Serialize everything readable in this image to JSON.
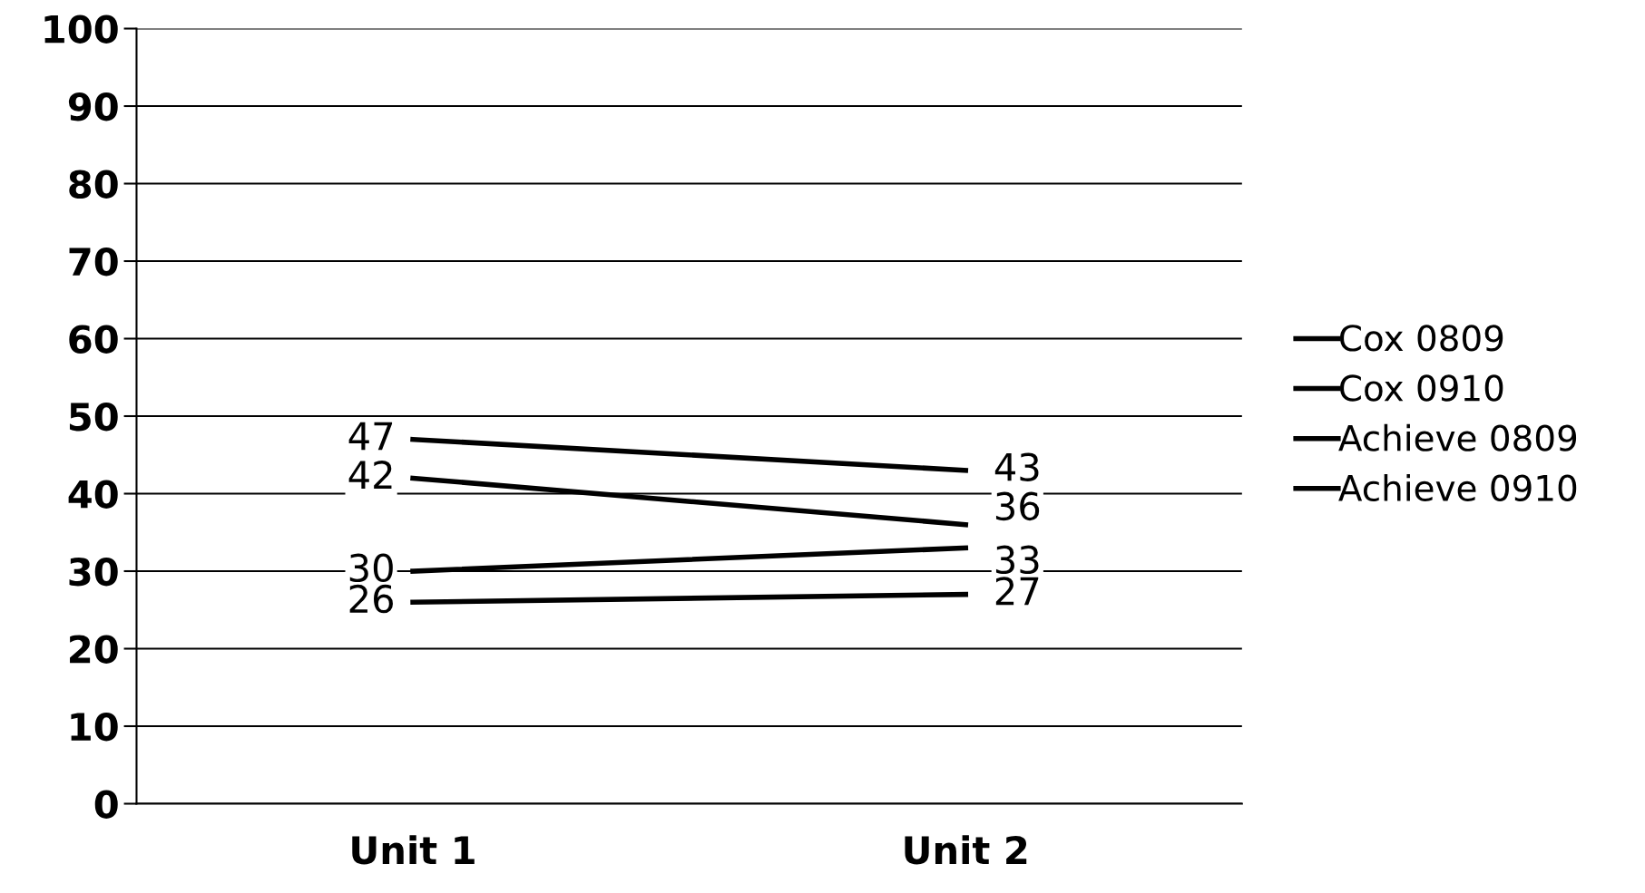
{
  "chart_data": {
    "type": "line",
    "categories": [
      "Unit 1",
      "Unit 2"
    ],
    "series": [
      {
        "name": "Cox 0809",
        "color": "#000000",
        "values": [
          47,
          43
        ]
      },
      {
        "name": "Cox 0910",
        "color": "#000000",
        "values": [
          42,
          36
        ]
      },
      {
        "name": "Achieve 0809",
        "color": "#000000",
        "values": [
          30,
          33
        ]
      },
      {
        "name": "Achieve 0910",
        "color": "#000000",
        "values": [
          26,
          27
        ]
      }
    ],
    "ylim": [
      0,
      100
    ],
    "yticks": [
      0,
      10,
      20,
      30,
      40,
      50,
      60,
      70,
      80,
      90,
      100
    ],
    "grid": "y",
    "legend": "right",
    "marker": "none",
    "line_style": "solid",
    "data_labels": true
  }
}
